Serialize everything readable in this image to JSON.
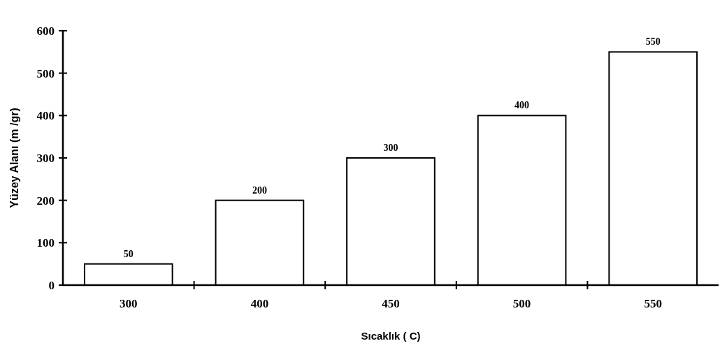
{
  "chart_data": {
    "type": "bar",
    "xlabel": "Sıcaklık ( C)",
    "ylabel": "Yüzey Alanı (m /gr)",
    "categories": [
      "300",
      "400",
      "450",
      "500",
      "550"
    ],
    "values": [
      50,
      200,
      300,
      400,
      550
    ],
    "color": "#ffffff",
    "ylim": [
      0,
      600
    ],
    "yticks": [
      0,
      100,
      200,
      300,
      400,
      500,
      600
    ],
    "data_labels": true
  }
}
